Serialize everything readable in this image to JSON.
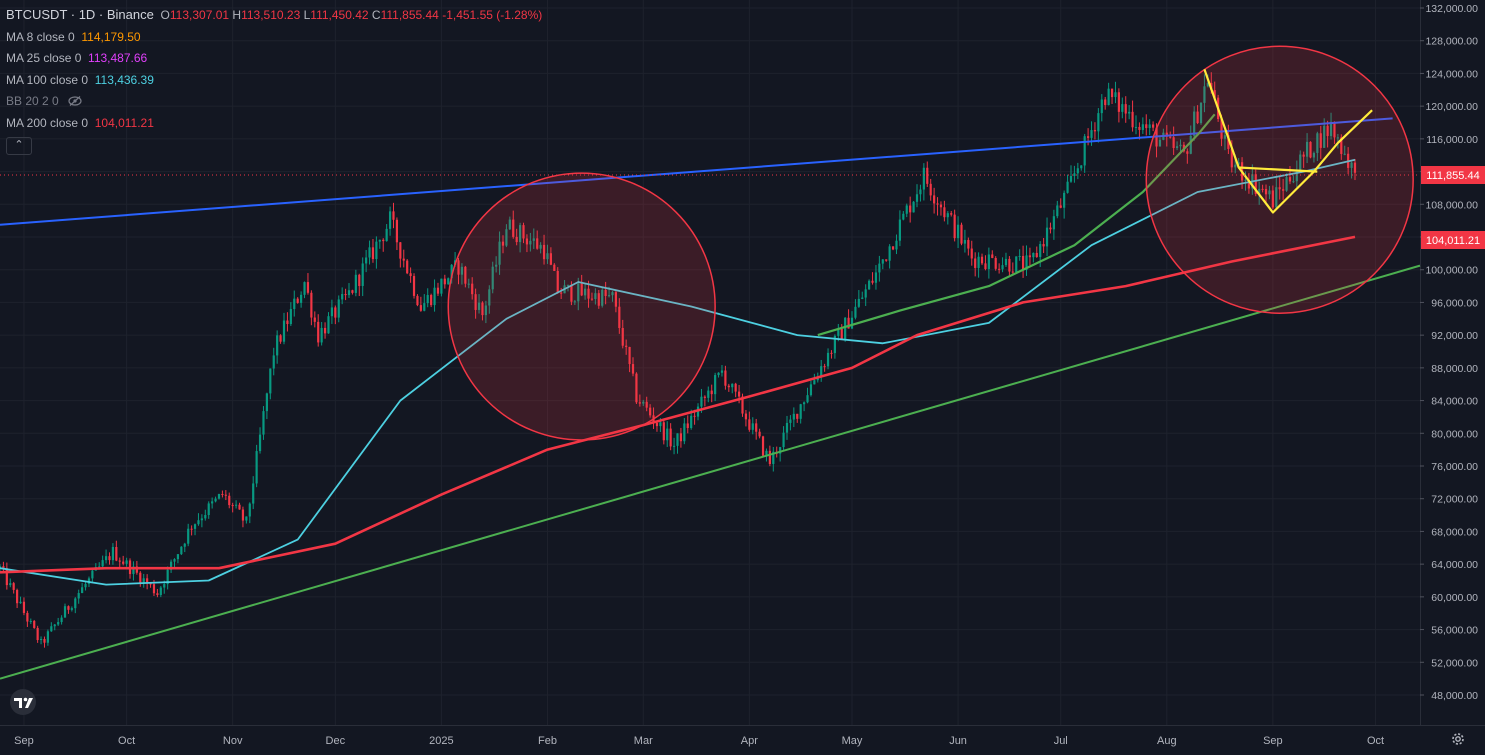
{
  "legend": {
    "symbol": "BTCUSDT · 1D · Binance",
    "open": "113,307.01",
    "high": "113,510.23",
    "low": "111,450.42",
    "close": "111,855.44",
    "change": "-1,451.55 (-1.28%)",
    "indicators": [
      {
        "label": "MA 8 close 0",
        "value": "114,179.50",
        "color": "#ff9800"
      },
      {
        "label": "MA 25 close 0",
        "value": "113,487.66",
        "color": "#e040fb"
      },
      {
        "label": "MA 100 close 0",
        "value": "113,436.39",
        "color": "#4dd0e1"
      },
      {
        "label": "BB 20 2 0",
        "value": "",
        "color": "#b2b5be"
      },
      {
        "label": "MA 200 close 0",
        "value": "104,011.21",
        "color": "#f23645"
      }
    ],
    "collapse_symbol": "⌃"
  },
  "price_badges": {
    "last": "111,855.44",
    "ma200": "104,011.21"
  },
  "chart_data": {
    "type": "candlestick",
    "x_tick_labels": [
      "Sep",
      "Oct",
      "Nov",
      "Dec",
      "2025",
      "Feb",
      "Mar",
      "Apr",
      "May",
      "Jun",
      "Jul",
      "Aug",
      "Sep",
      "Oct"
    ],
    "y_tick_labels": [
      "132,000.00",
      "128,000.00",
      "124,000.00",
      "120,000.00",
      "116,000.00",
      "112,000.00",
      "108,000.00",
      "104,000.00",
      "100,000.00",
      "96,000.00",
      "92,000.00",
      "88,000.00",
      "84,000.00",
      "80,000.00",
      "76,000.00",
      "72,000.00",
      "68,000.00",
      "64,000.00",
      "60,000.00",
      "56,000.00",
      "52,000.00",
      "48,000.00"
    ],
    "y_range": [
      46000,
      133000
    ],
    "x_range": [
      "2024-08-25",
      "2025-10-14"
    ],
    "price_closes_sampled": [
      [
        "2024-08-25",
        63500
      ],
      [
        "2024-09-06",
        54200
      ],
      [
        "2024-09-17",
        60500
      ],
      [
        "2024-09-27",
        65500
      ],
      [
        "2024-10-10",
        60500
      ],
      [
        "2024-10-20",
        68800
      ],
      [
        "2024-10-29",
        72500
      ],
      [
        "2024-11-05",
        69000
      ],
      [
        "2024-11-13",
        90000
      ],
      [
        "2024-11-22",
        98500
      ],
      [
        "2024-11-26",
        92000
      ],
      [
        "2024-12-05",
        97000
      ],
      [
        "2024-12-17",
        106000
      ],
      [
        "2024-12-26",
        95500
      ],
      [
        "2025-01-06",
        100500
      ],
      [
        "2025-01-13",
        94500
      ],
      [
        "2025-01-20",
        105500
      ],
      [
        "2025-01-31",
        102500
      ],
      [
        "2025-02-04",
        97500
      ],
      [
        "2025-02-20",
        96500
      ],
      [
        "2025-02-27",
        84500
      ],
      [
        "2025-03-10",
        78500
      ],
      [
        "2025-03-24",
        87500
      ],
      [
        "2025-04-07",
        76500
      ],
      [
        "2025-04-21",
        87500
      ],
      [
        "2025-05-08",
        99500
      ],
      [
        "2025-05-22",
        111500
      ],
      [
        "2025-06-05",
        101500
      ],
      [
        "2025-06-22",
        100500
      ],
      [
        "2025-07-03",
        109500
      ],
      [
        "2025-07-14",
        121500
      ],
      [
        "2025-07-31",
        115500
      ],
      [
        "2025-08-06",
        114000
      ],
      [
        "2025-08-13",
        123500
      ],
      [
        "2025-08-19",
        113500
      ],
      [
        "2025-09-01",
        108500
      ],
      [
        "2025-09-13",
        115500
      ],
      [
        "2025-09-18",
        117500
      ],
      [
        "2025-09-25",
        111855
      ]
    ],
    "series": [
      {
        "name": "MA 8 close 0",
        "color": "#ff9800",
        "last": 114179.5
      },
      {
        "name": "MA 25 close 0",
        "color": "#e040fb",
        "last": 113487.66
      },
      {
        "name": "MA 100 close 0",
        "color": "#4dd0e1",
        "points": [
          [
            "2024-08-25",
            63500
          ],
          [
            "2024-09-25",
            61500
          ],
          [
            "2024-10-25",
            62000
          ],
          [
            "2024-11-20",
            67000
          ],
          [
            "2024-12-20",
            84000
          ],
          [
            "2025-01-20",
            94000
          ],
          [
            "2025-02-10",
            98500
          ],
          [
            "2025-03-15",
            95500
          ],
          [
            "2025-04-15",
            92000
          ],
          [
            "2025-05-10",
            91000
          ],
          [
            "2025-06-10",
            93500
          ],
          [
            "2025-07-10",
            103000
          ],
          [
            "2025-08-10",
            109500
          ],
          [
            "2025-09-10",
            112000
          ],
          [
            "2025-09-25",
            113436
          ]
        ]
      },
      {
        "name": "MA 200 close 0",
        "color": "#f23645",
        "points": [
          [
            "2024-08-25",
            63000
          ],
          [
            "2024-09-25",
            63500
          ],
          [
            "2024-10-28",
            63500
          ],
          [
            "2024-12-01",
            66500
          ],
          [
            "2025-01-01",
            72500
          ],
          [
            "2025-02-01",
            78000
          ],
          [
            "2025-03-01",
            81000
          ],
          [
            "2025-04-01",
            84500
          ],
          [
            "2025-05-01",
            88000
          ],
          [
            "2025-05-20",
            92000
          ],
          [
            "2025-06-20",
            96000
          ],
          [
            "2025-07-20",
            98000
          ],
          [
            "2025-08-20",
            101000
          ],
          [
            "2025-09-25",
            104011
          ]
        ]
      }
    ],
    "drawings": [
      {
        "kind": "trendline",
        "color": "#2962ff",
        "from": [
          "2024-08-25",
          105500
        ],
        "to": [
          "2025-10-06",
          118500
        ]
      },
      {
        "kind": "trendline",
        "color": "#4caf50",
        "from": [
          "2024-08-25",
          50000
        ],
        "to": [
          "2025-10-14",
          100500
        ]
      },
      {
        "kind": "curve",
        "color": "#4caf50",
        "points": [
          [
            "2025-04-21",
            92000
          ],
          [
            "2025-05-15",
            95000
          ],
          [
            "2025-06-10",
            98000
          ],
          [
            "2025-07-05",
            103000
          ],
          [
            "2025-07-25",
            109500
          ],
          [
            "2025-08-10",
            116500
          ],
          [
            "2025-08-15",
            119000
          ]
        ]
      },
      {
        "kind": "circle",
        "color": "#f23645",
        "center": [
          "2025-02-11",
          95500
        ],
        "radius_days": 12
      },
      {
        "kind": "circle",
        "color": "#f23645",
        "center": [
          "2025-09-03",
          111000
        ],
        "radius_days": 12
      },
      {
        "kind": "polyline",
        "color": "#ffeb3b",
        "points": [
          [
            "2025-08-12",
            124500
          ],
          [
            "2025-08-22",
            112500
          ],
          [
            "2025-09-01",
            107000
          ],
          [
            "2025-09-13",
            112000
          ],
          [
            "2025-09-20",
            115500
          ],
          [
            "2025-09-30",
            119500
          ]
        ]
      },
      {
        "kind": "polyline",
        "color": "#ffeb3b",
        "points": [
          [
            "2025-08-22",
            112500
          ],
          [
            "2025-09-14",
            112000
          ]
        ]
      }
    ]
  }
}
